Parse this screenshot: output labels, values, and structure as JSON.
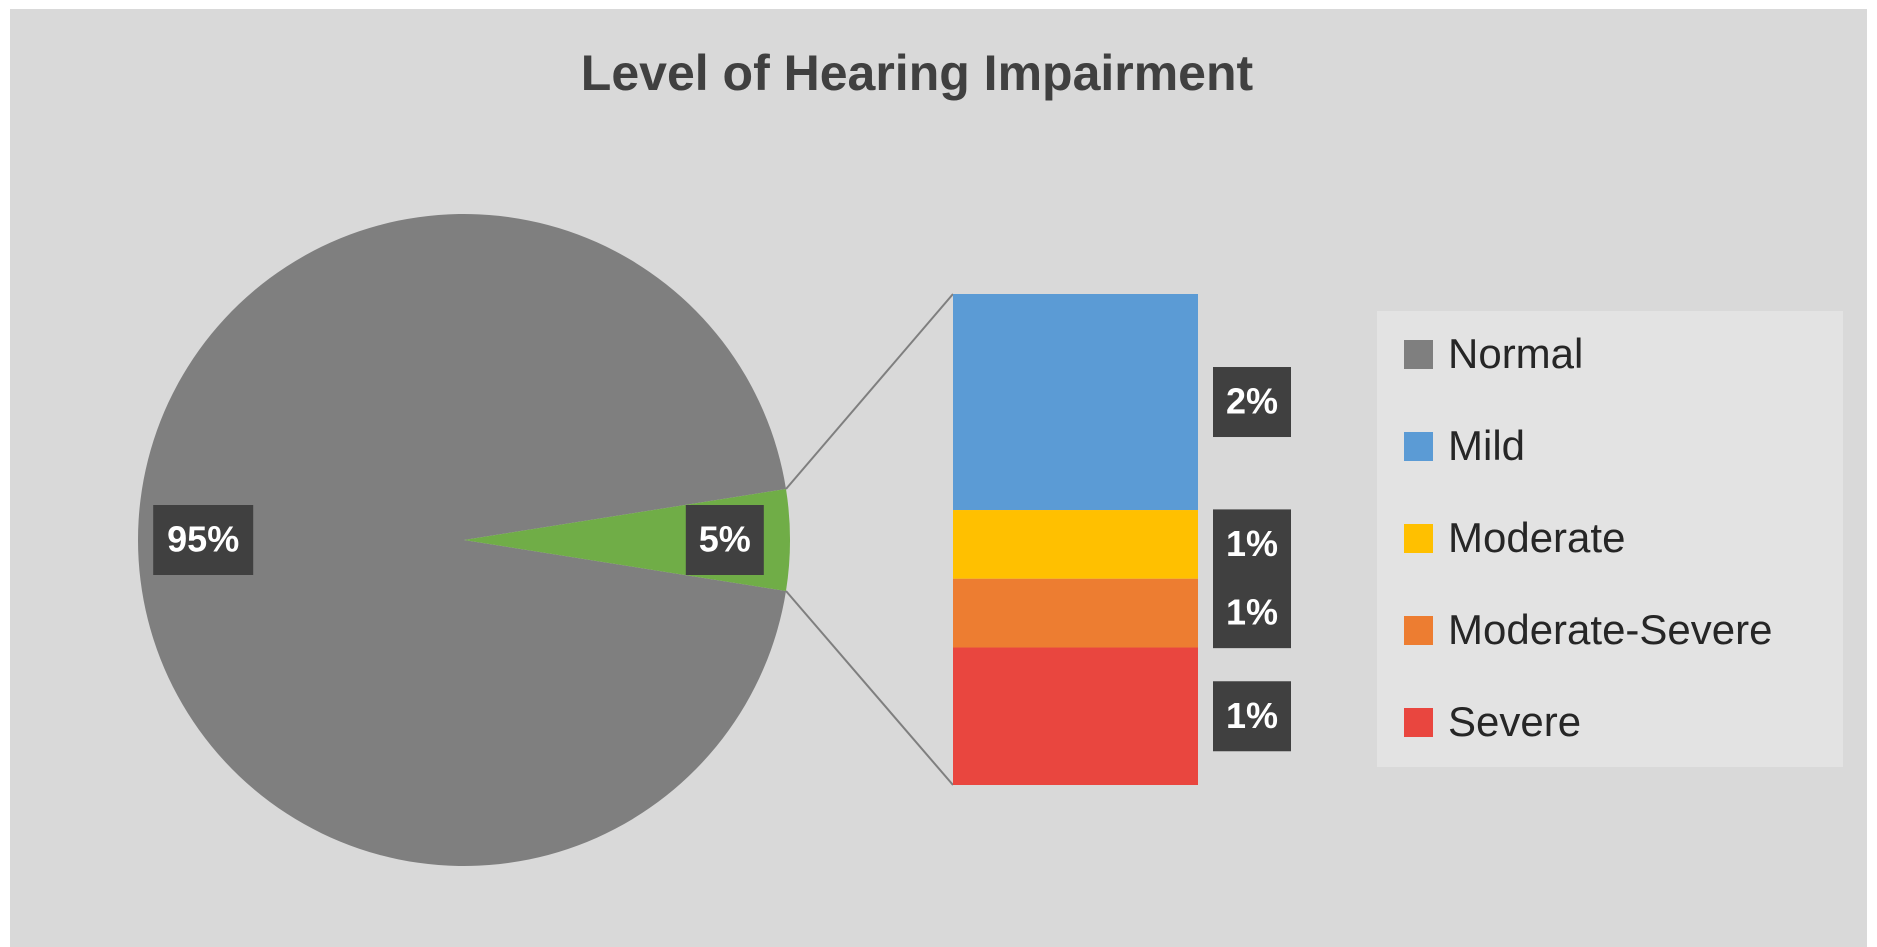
{
  "chart_data": {
    "type": "pie-of-bar",
    "title": "Level of Hearing Impairment",
    "categories": [
      "Normal",
      "Mild",
      "Moderate",
      "Moderate-Severe",
      "Severe"
    ],
    "values": [
      95,
      2.2,
      0.7,
      0.7,
      1.4
    ],
    "value_labels": [
      "95%",
      "2%",
      "1%",
      "1%",
      "1%"
    ],
    "colors": [
      "#7f7f7f",
      "#5b9bd5",
      "#ffc000",
      "#ed7d31",
      "#e9463f"
    ],
    "other": {
      "value": 5,
      "value_label": "5%",
      "color": "#70ad47"
    },
    "second_plot_count": 4,
    "legend": "right"
  }
}
